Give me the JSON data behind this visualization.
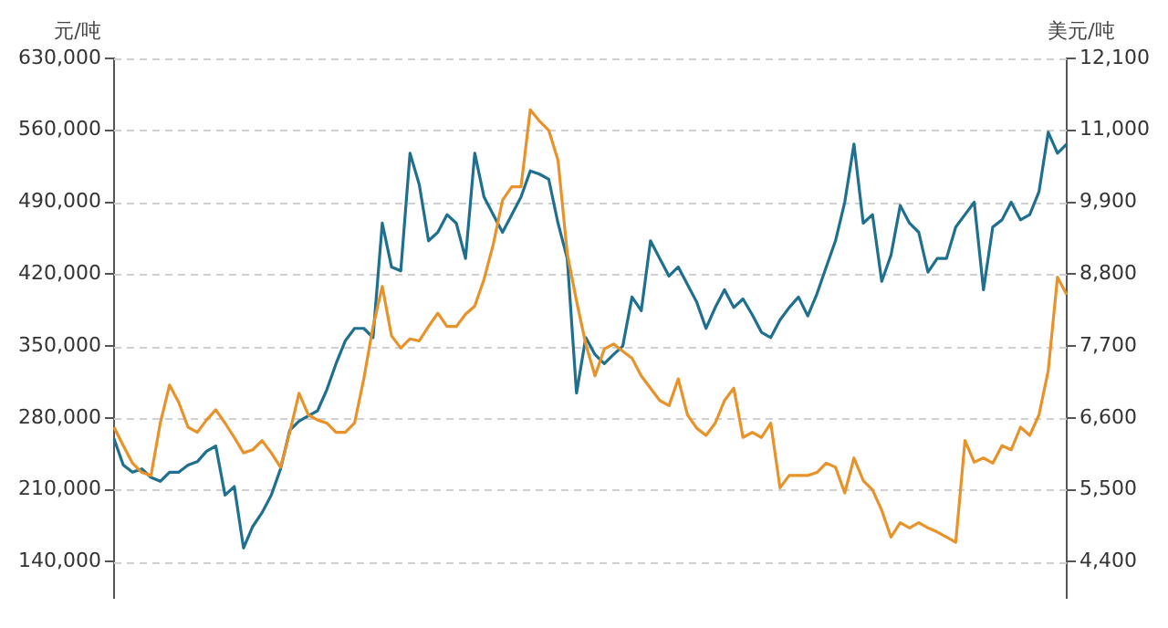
{
  "chart_data": {
    "type": "line",
    "ylabel": "元/吨",
    "y2label": "美元/吨",
    "categories": [
      null,
      null,
      null,
      null,
      null,
      null,
      null,
      null,
      null,
      null,
      null,
      null,
      null,
      null,
      null,
      null,
      null,
      null,
      null,
      null,
      null,
      null,
      null,
      null,
      null,
      null,
      null,
      null,
      null,
      null,
      null,
      null,
      null,
      null,
      null,
      null,
      null,
      null,
      null,
      null,
      null,
      null,
      null,
      null,
      null,
      null,
      null,
      null,
      null,
      null,
      null,
      null,
      null,
      null,
      null,
      null,
      null,
      null,
      null,
      null,
      null,
      null,
      null,
      null,
      null,
      null,
      null,
      null,
      null,
      null,
      null,
      null,
      null,
      null,
      null,
      null,
      null,
      null,
      null,
      null,
      null,
      null,
      null,
      null,
      null,
      null,
      null,
      null,
      null,
      null,
      null,
      null,
      null,
      null,
      null,
      null,
      null,
      null,
      null,
      null,
      null,
      null,
      null,
      null
    ],
    "ylim": [
      105000,
      630000
    ],
    "yticks": [
      {
        "value": 140000,
        "label": "140,000"
      },
      {
        "value": 210000,
        "label": "210,000"
      },
      {
        "value": 280000,
        "label": "280,000"
      },
      {
        "value": 350000,
        "label": "350,000"
      },
      {
        "value": 420000,
        "label": "420,000"
      },
      {
        "value": 490000,
        "label": "490,000"
      },
      {
        "value": 560000,
        "label": "560,000"
      },
      {
        "value": 630000,
        "label": "630,000"
      }
    ],
    "y2lim": [
      3850,
      12100
    ],
    "y2ticks": [
      {
        "value": 4400,
        "label": "4,400"
      },
      {
        "value": 5500,
        "label": "5,500"
      },
      {
        "value": 6600,
        "label": "6,600"
      },
      {
        "value": 7700,
        "label": "7,700"
      },
      {
        "value": 8800,
        "label": "8,800"
      },
      {
        "value": 9900,
        "label": "9,900"
      },
      {
        "value": 11000,
        "label": "11,000"
      },
      {
        "value": 12100,
        "label": "12,100"
      }
    ],
    "tick_labels": "y",
    "grid": "y",
    "marker": "none",
    "line_style": "solid",
    "series": [
      {
        "color": "#e8922a",
        "axis": "y",
        "values": [
          271000,
          253000,
          236000,
          227000,
          224000,
          275000,
          312000,
          295000,
          271000,
          266000,
          278000,
          288000,
          275000,
          261000,
          246000,
          249000,
          258000,
          246000,
          232000,
          266000,
          304000,
          283000,
          278000,
          275000,
          266000,
          266000,
          275000,
          318000,
          369000,
          408000,
          360000,
          348000,
          357000,
          355000,
          369000,
          382000,
          369000,
          369000,
          381000,
          389000,
          415000,
          449000,
          492000,
          505000,
          505000,
          580000,
          569000,
          560000,
          531000,
          440000,
          394000,
          352000,
          321000,
          347000,
          352000,
          345000,
          338000,
          321000,
          309000,
          297000,
          292000,
          318000,
          283000,
          270000,
          263000,
          275000,
          297000,
          309000,
          261000,
          266000,
          261000,
          275000,
          212000,
          224000,
          224000,
          224000,
          227000,
          236000,
          232000,
          207000,
          241000,
          219000,
          210000,
          190000,
          164000,
          178000,
          173000,
          178000,
          173000,
          169000,
          164000,
          159000,
          258000,
          237000,
          241000,
          236000,
          253000,
          249000,
          271000,
          263000,
          283000,
          326000,
          417000,
          400000
        ]
      },
      {
        "color": "#1f6f8f",
        "axis": "y2",
        "values": [
          6280,
          5880,
          5770,
          5820,
          5690,
          5630,
          5770,
          5770,
          5880,
          5930,
          6090,
          6170,
          5420,
          5550,
          4610,
          4940,
          5150,
          5420,
          5820,
          6410,
          6550,
          6630,
          6710,
          7030,
          7430,
          7780,
          7970,
          7970,
          7830,
          9580,
          8910,
          8850,
          10650,
          10170,
          9310,
          9440,
          9710,
          9580,
          9040,
          10650,
          9980,
          9710,
          9440,
          9710,
          9980,
          10380,
          10330,
          10250,
          9580,
          9040,
          6980,
          7830,
          7570,
          7430,
          7570,
          7700,
          8450,
          8240,
          9310,
          9040,
          8770,
          8910,
          8640,
          8370,
          7970,
          8290,
          8560,
          8290,
          8420,
          8180,
          7910,
          7830,
          8100,
          8290,
          8450,
          8160,
          8500,
          8910,
          9310,
          9900,
          10790,
          9580,
          9710,
          8690,
          9090,
          9850,
          9580,
          9440,
          8830,
          9040,
          9040,
          9520,
          9710,
          9900,
          8560,
          9520,
          9630,
          9900,
          9630,
          9710,
          10060,
          10970,
          10650,
          10790
        ]
      }
    ]
  }
}
